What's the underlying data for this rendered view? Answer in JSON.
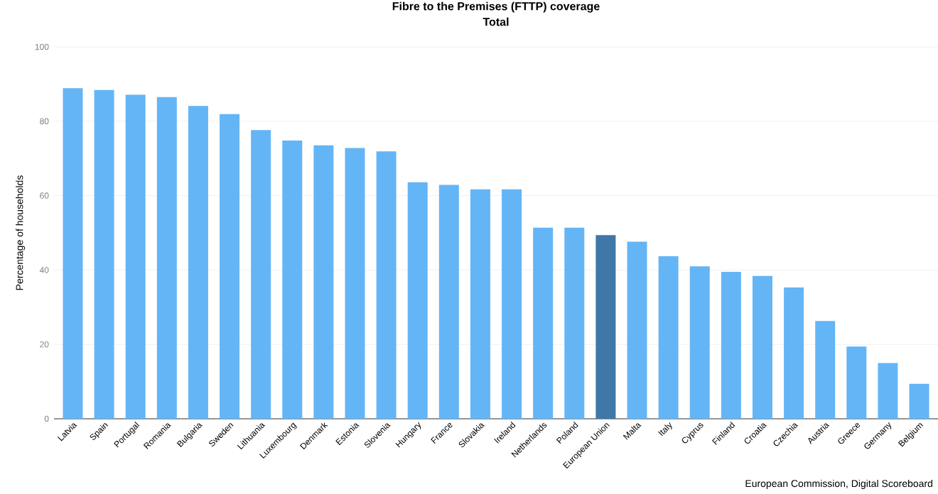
{
  "chart_data": {
    "type": "bar",
    "title": "Fibre to the Premises (FTTP) coverage",
    "subtitle": "Total",
    "ylabel": "Percentage of households",
    "categories": [
      "Latvia",
      "Spain",
      "Portugal",
      "Romania",
      "Bulgaria",
      "Sweden",
      "Lithuania",
      "Luxembourg",
      "Denmark",
      "Estonia",
      "Slovenia",
      "Hungary",
      "France",
      "Slovakia",
      "Ireland",
      "Netherlands",
      "Poland",
      "European Union",
      "Malta",
      "Italy",
      "Cyprus",
      "Finland",
      "Croatia",
      "Czechia",
      "Austria",
      "Greece",
      "Germany",
      "Belgium"
    ],
    "values": [
      88.9,
      88.4,
      87.1,
      86.5,
      84.1,
      81.9,
      77.6,
      74.8,
      73.5,
      72.8,
      71.9,
      63.6,
      62.9,
      61.7,
      61.7,
      51.4,
      51.4,
      49.4,
      47.6,
      43.7,
      41.0,
      39.5,
      38.4,
      35.3,
      26.3,
      19.4,
      15.0,
      9.4
    ],
    "colors": [
      "#64b5f6",
      "#64b5f6",
      "#64b5f6",
      "#64b5f6",
      "#64b5f6",
      "#64b5f6",
      "#64b5f6",
      "#64b5f6",
      "#64b5f6",
      "#64b5f6",
      "#64b5f6",
      "#64b5f6",
      "#64b5f6",
      "#64b5f6",
      "#64b5f6",
      "#64b5f6",
      "#64b5f6",
      "#3f78a8",
      "#64b5f6",
      "#64b5f6",
      "#64b5f6",
      "#64b5f6",
      "#64b5f6",
      "#64b5f6",
      "#64b5f6",
      "#64b5f6",
      "#64b5f6",
      "#64b5f6"
    ],
    "ylim": [
      0,
      100
    ],
    "yticks": [
      0,
      20,
      40,
      60,
      80,
      100
    ],
    "grid": "y",
    "annotations": [
      "European Commission, Digital Scoreboard"
    ]
  }
}
